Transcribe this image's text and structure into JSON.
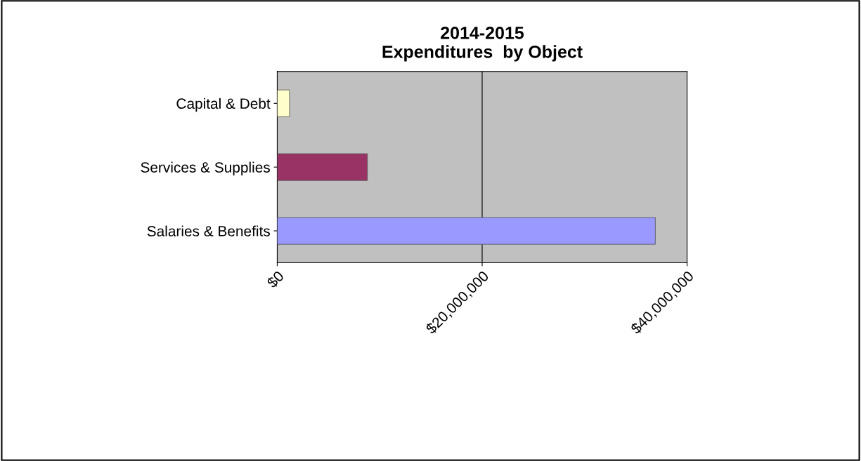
{
  "chart_data": {
    "type": "bar",
    "orientation": "horizontal",
    "title": "2014-2015\nExpenditures  by Object",
    "categories": [
      "Capital & Debt",
      "Services & Supplies",
      "Salaries & Benefits"
    ],
    "values": [
      1200000,
      8800000,
      36900000
    ],
    "colors": [
      "#ffffcc",
      "#993366",
      "#9999ff"
    ],
    "xlim": [
      0,
      40000000
    ],
    "xticks": [
      {
        "value": 0,
        "label": "$0"
      },
      {
        "value": 20000000,
        "label": "$20,000,000"
      },
      {
        "value": 40000000,
        "label": "$40,000,000"
      }
    ],
    "grid": "x",
    "legend": false
  }
}
